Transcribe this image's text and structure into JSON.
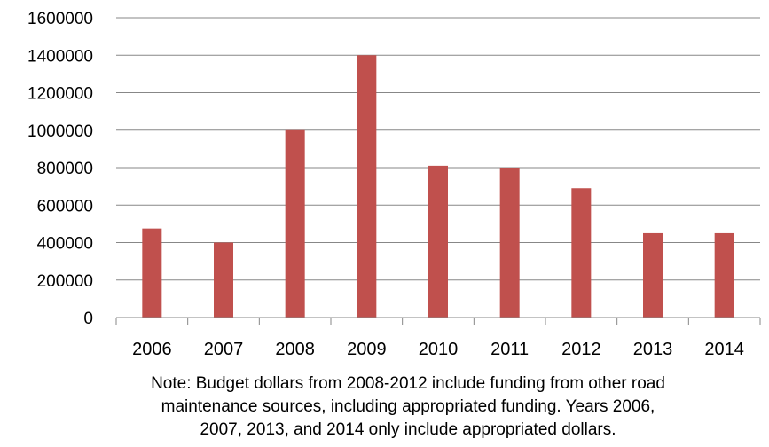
{
  "chart_data": {
    "type": "bar",
    "categories": [
      "2006",
      "2007",
      "2008",
      "2009",
      "2010",
      "2011",
      "2012",
      "2013",
      "2014"
    ],
    "values": [
      475000,
      400000,
      1000000,
      1400000,
      810000,
      800000,
      690000,
      450000,
      450000
    ],
    "ylim": [
      0,
      1600000
    ],
    "yticks": [
      "0",
      "200000",
      "400000",
      "600000",
      "800000",
      "1000000",
      "1200000",
      "1400000",
      "1600000"
    ],
    "grid": true,
    "legend": "none",
    "bar_color": "#C0504D",
    "note_lines": [
      "Note: Budget dollars from 2008-2012 include funding from other road",
      "maintenance sources, including appropriated funding. Years 2006,",
      "2007, 2013, and 2014 only include appropriated dollars."
    ]
  }
}
